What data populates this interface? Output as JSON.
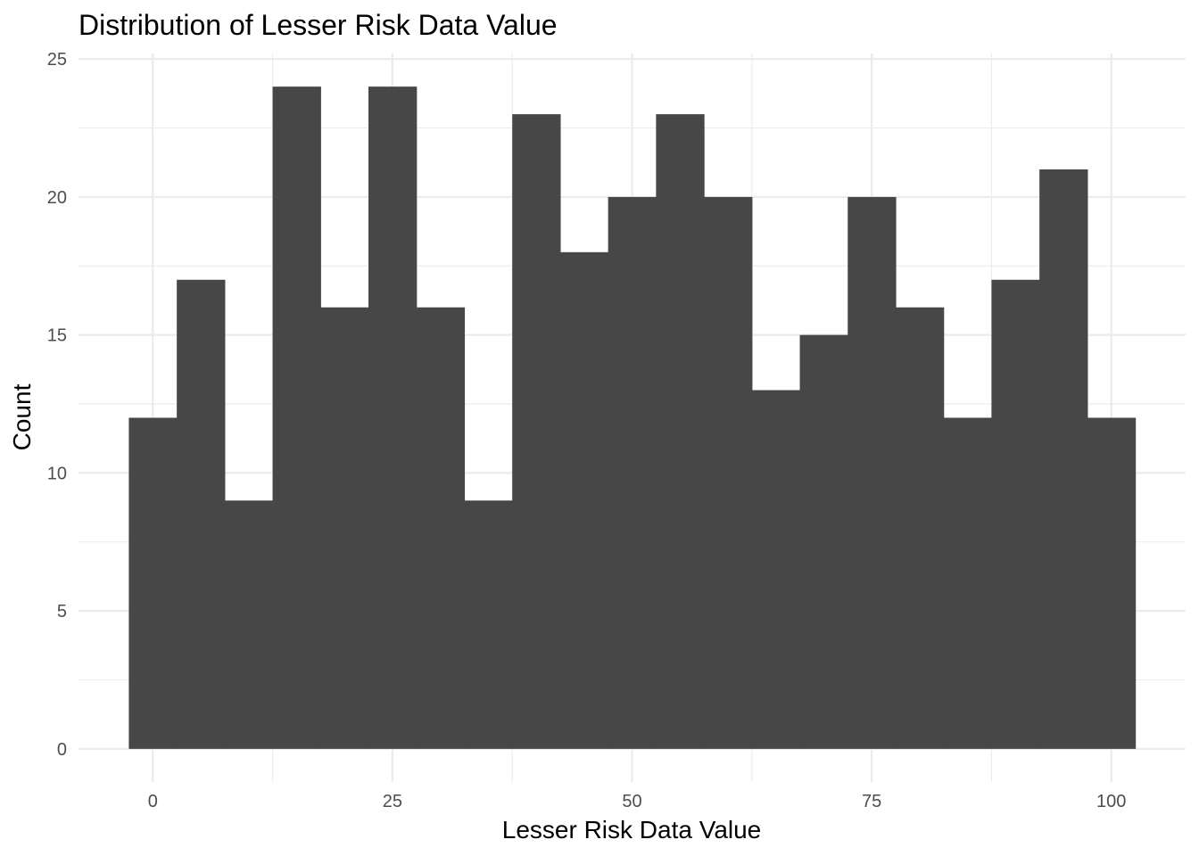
{
  "chart_data": {
    "type": "bar",
    "title": "Distribution of Lesser Risk Data Value",
    "xlabel": "Lesser Risk Data Value",
    "ylabel": "Count",
    "bin_width": 5,
    "bins": [
      {
        "start": -2.5,
        "end": 2.5,
        "count": 12
      },
      {
        "start": 2.5,
        "end": 7.5,
        "count": 17
      },
      {
        "start": 7.5,
        "end": 12.5,
        "count": 9
      },
      {
        "start": 12.5,
        "end": 17.5,
        "count": 24
      },
      {
        "start": 17.5,
        "end": 22.5,
        "count": 16
      },
      {
        "start": 22.5,
        "end": 27.5,
        "count": 24
      },
      {
        "start": 27.5,
        "end": 32.5,
        "count": 16
      },
      {
        "start": 32.5,
        "end": 37.5,
        "count": 9
      },
      {
        "start": 37.5,
        "end": 42.5,
        "count": 23
      },
      {
        "start": 42.5,
        "end": 47.5,
        "count": 18
      },
      {
        "start": 47.5,
        "end": 52.5,
        "count": 20
      },
      {
        "start": 52.5,
        "end": 57.5,
        "count": 23
      },
      {
        "start": 57.5,
        "end": 62.5,
        "count": 20
      },
      {
        "start": 62.5,
        "end": 67.5,
        "count": 13
      },
      {
        "start": 67.5,
        "end": 72.5,
        "count": 15
      },
      {
        "start": 72.5,
        "end": 77.5,
        "count": 20
      },
      {
        "start": 77.5,
        "end": 82.5,
        "count": 16
      },
      {
        "start": 82.5,
        "end": 87.5,
        "count": 12
      },
      {
        "start": 87.5,
        "end": 92.5,
        "count": 17
      },
      {
        "start": 92.5,
        "end": 97.5,
        "count": 21
      },
      {
        "start": 97.5,
        "end": 102.5,
        "count": 12
      }
    ],
    "x_ticks": [
      0,
      25,
      50,
      75,
      100
    ],
    "x_tick_labels": [
      "0",
      "25",
      "50",
      "75",
      "100"
    ],
    "y_ticks": [
      0,
      5,
      10,
      15,
      20,
      25
    ],
    "y_tick_labels": [
      "0",
      "5",
      "10",
      "15",
      "20",
      "25"
    ],
    "xlim": [
      -7.75,
      107.75
    ],
    "ylim": [
      -1.2,
      25.2
    ],
    "grid": true,
    "legend": "none",
    "colors": {
      "bar": "#474747",
      "grid": "#ebebeb",
      "tick_text": "#4d4d4d",
      "text": "#000000"
    }
  }
}
